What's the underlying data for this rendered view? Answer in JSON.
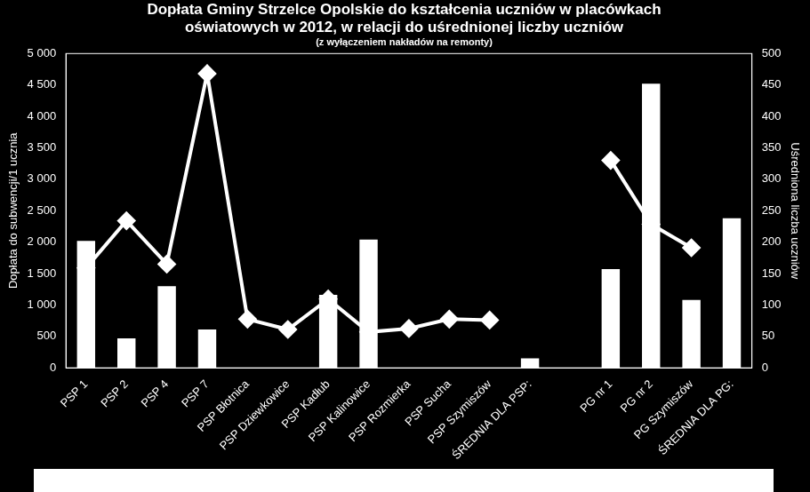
{
  "chart_data": {
    "type": "bar",
    "title": [
      "Dopłata Gminy Strzelce Opolskie do kształcenia uczniów w placówkach",
      "oświatowych w 2012, w relacji do uśrednionej liczby uczniów"
    ],
    "subtitle": "(z wyłączeniem nakładów na remonty)",
    "y_label": "Dopłata do subwencji/1 ucznia",
    "y2_label": "Uśredniona liczba uczniów",
    "categories": [
      "PSP 1",
      "PSP 2",
      "PSP 4",
      "PSP 7",
      "PSP Błotnica",
      "PSP Dziewkowice",
      "PSP Kadłub",
      "PSP Kalinowice",
      "PSP Rozmierka",
      "PSP Sucha",
      "PSP Szymiszów",
      "ŚREDNIA DLA PSP:",
      null,
      "PG nr 1",
      "PG nr 2",
      "PG Szymiszów",
      "ŚREDNIA DLA PG:"
    ],
    "series": [
      {
        "type": "bar",
        "axis": "y2",
        "color": "#ffffff",
        "values": [
          202,
          47,
          130,
          61,
          null,
          null,
          116,
          204,
          null,
          null,
          null,
          15,
          null,
          157,
          452,
          108,
          238
        ]
      },
      {
        "type": "line",
        "axis": "y",
        "color": "#ffffff",
        "marker": "diamond",
        "line_style": "solid",
        "values": [
          1590,
          2340,
          1650,
          4680,
          775,
          610,
          1095,
          570,
          625,
          775,
          760,
          null,
          null,
          3300,
          2285,
          1910,
          null
        ]
      }
    ],
    "ylim": [
      0,
      5000
    ],
    "yticks": [
      0,
      500,
      {
        "value": 1000,
        "label": "1 000"
      },
      {
        "value": 1500,
        "label": "1 500"
      },
      {
        "value": 2000,
        "label": "2 000"
      },
      {
        "value": 2500,
        "label": "2 500"
      },
      {
        "value": 3000,
        "label": "3 000"
      },
      {
        "value": 3500,
        "label": "3 500"
      },
      {
        "value": 4000,
        "label": "4 000"
      },
      {
        "value": 4500,
        "label": "4 500"
      },
      {
        "value": 5000,
        "label": "5 000"
      }
    ],
    "y2lim": [
      0,
      500
    ],
    "y2ticks": [
      0,
      50,
      100,
      150,
      200,
      250,
      300,
      350,
      400,
      450,
      500
    ],
    "grid": false
  }
}
